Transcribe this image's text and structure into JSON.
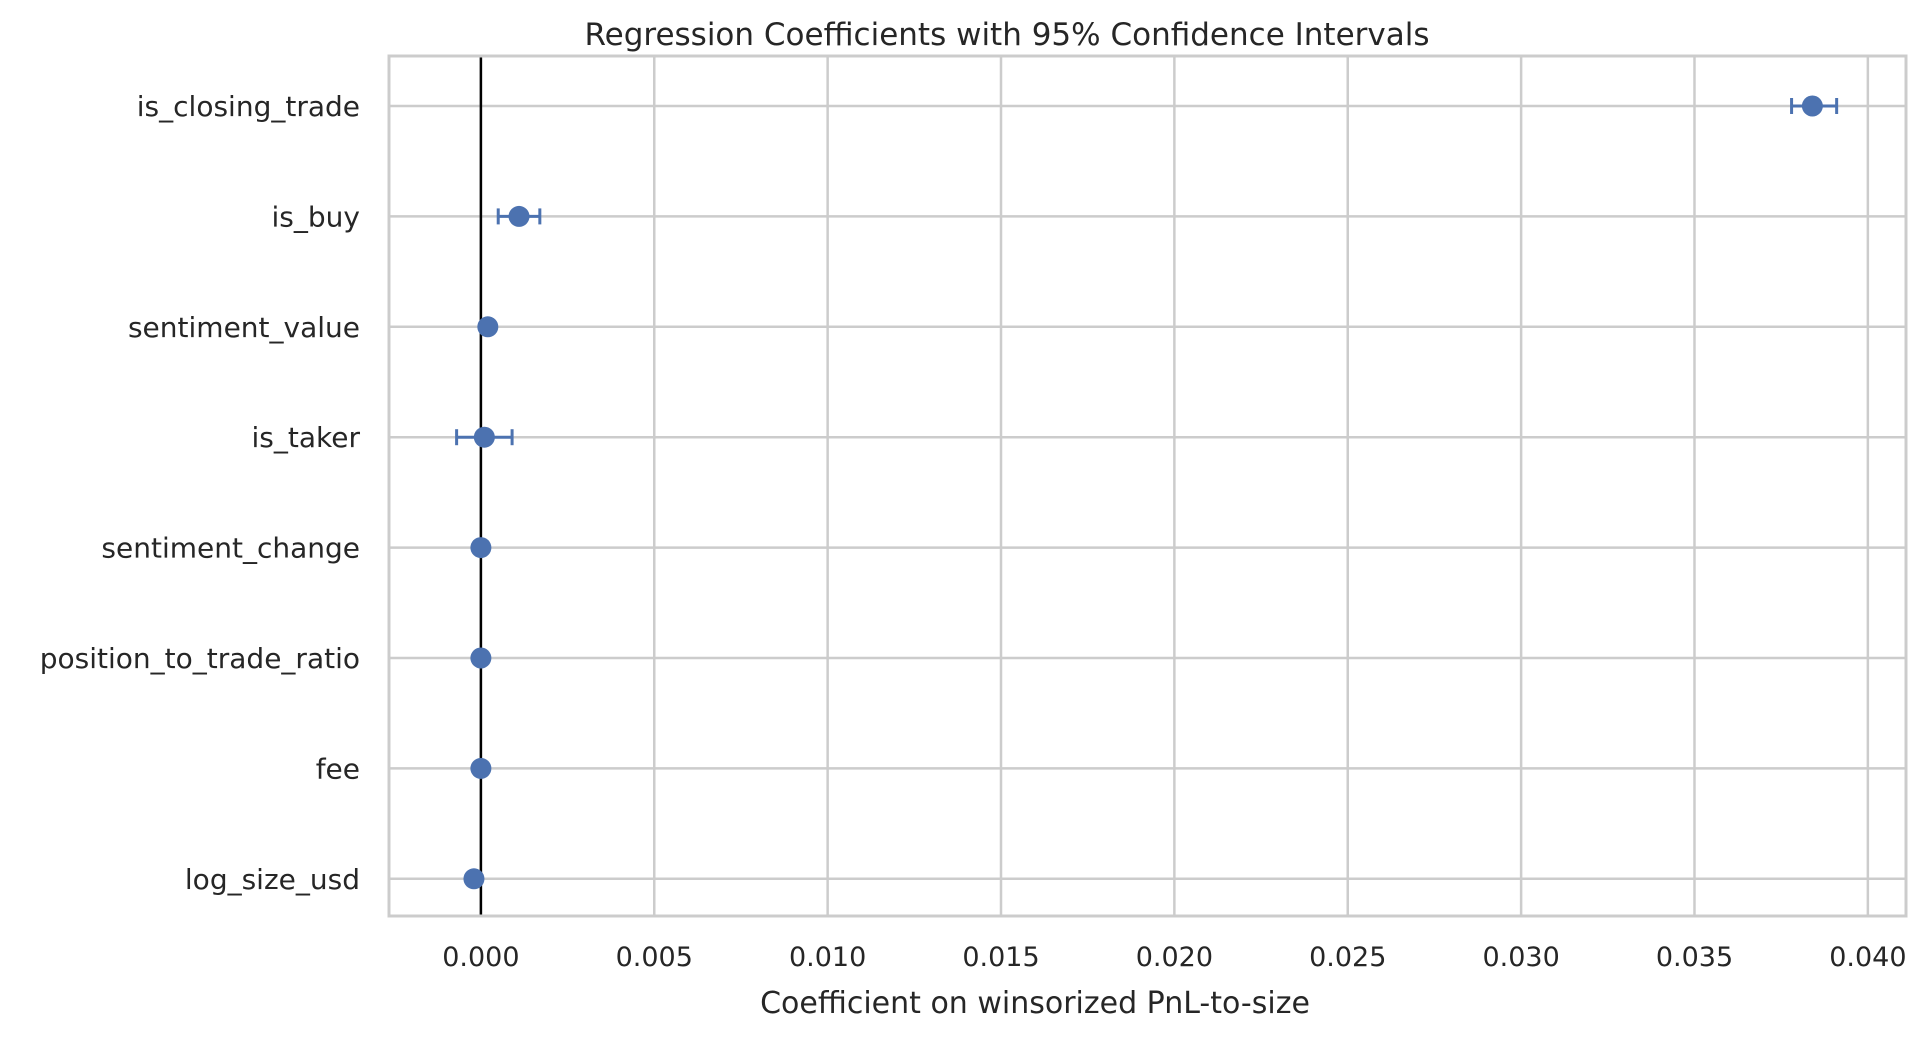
{
  "chart_data": {
    "type": "scatter",
    "title": "Regression Coefficients with 95% Confidence Intervals",
    "xlabel": "Coefficient on winsorized PnL-to-size",
    "ylabel": "",
    "xlim": [
      -0.00265,
      0.0411
    ],
    "xticks": [
      0.0,
      0.005,
      0.01,
      0.015,
      0.02,
      0.025,
      0.03,
      0.035,
      0.04
    ],
    "xtick_labels": [
      "0.000",
      "0.005",
      "0.010",
      "0.015",
      "0.020",
      "0.025",
      "0.030",
      "0.035",
      "0.040"
    ],
    "reference_line_x": 0,
    "grid": true,
    "legend": "none",
    "marker_color": "#4c72b0",
    "categories": [
      "is_closing_trade",
      "is_buy",
      "sentiment_value",
      "is_taker",
      "sentiment_change",
      "position_to_trade_ratio",
      "fee",
      "log_size_usd"
    ],
    "coefficients": [
      0.0384,
      0.0011,
      0.0002,
      0.0001,
      0.0,
      0.0,
      0.0,
      -0.0002
    ],
    "ci_lower": [
      0.0378,
      0.0005,
      0.0002,
      -0.0007,
      0.0,
      0.0,
      0.0,
      -0.0002
    ],
    "ci_upper": [
      0.0391,
      0.0017,
      0.0002,
      0.0009,
      0.0,
      0.0,
      0.0,
      -0.0002
    ]
  }
}
